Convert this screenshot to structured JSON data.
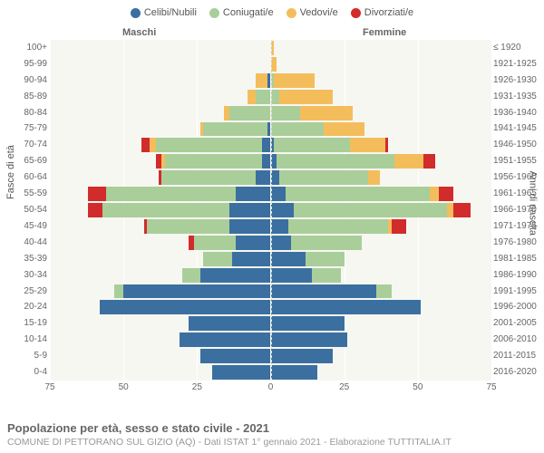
{
  "legend": {
    "items": [
      {
        "label": "Celibi/Nubili",
        "color": "#3b6fa0"
      },
      {
        "label": "Coniugati/e",
        "color": "#a9ce9a"
      },
      {
        "label": "Vedovi/e",
        "color": "#f4bd5c"
      },
      {
        "label": "Divorziati/e",
        "color": "#d22b2b"
      }
    ]
  },
  "gender_labels": {
    "male": "Maschi",
    "female": "Femmine"
  },
  "y_axis_left_label": "Fasce di età",
  "y_axis_right_label": "Anni di nascita",
  "x_axis": {
    "min": -75,
    "max": 75,
    "ticks": [
      75,
      50,
      25,
      0,
      25,
      50,
      75
    ],
    "tick_positions": [
      -75,
      -50,
      -25,
      0,
      25,
      50,
      75
    ]
  },
  "colors": {
    "plot_bg": "#f7f7f2",
    "grid": "#ffffff",
    "text": "#666666",
    "sub_text": "#999999"
  },
  "title": "Popolazione per età, sesso e stato civile - 2021",
  "subtitle": "COMUNE DI PETTORANO SUL GIZIO (AQ) - Dati ISTAT 1° gennaio 2021 - Elaborazione TUTTITALIA.IT",
  "rows": [
    {
      "age": "100+",
      "birth": "≤ 1920",
      "m": [
        0,
        0,
        0,
        0
      ],
      "f": [
        0,
        0,
        1,
        0
      ]
    },
    {
      "age": "95-99",
      "birth": "1921-1925",
      "m": [
        0,
        0,
        0,
        0
      ],
      "f": [
        0,
        0,
        2,
        0
      ]
    },
    {
      "age": "90-94",
      "birth": "1926-1930",
      "m": [
        1,
        0,
        4,
        0
      ],
      "f": [
        0,
        1,
        14,
        0
      ]
    },
    {
      "age": "85-89",
      "birth": "1931-1935",
      "m": [
        0,
        5,
        3,
        0
      ],
      "f": [
        0,
        3,
        18,
        0
      ]
    },
    {
      "age": "80-84",
      "birth": "1936-1940",
      "m": [
        0,
        14,
        2,
        0
      ],
      "f": [
        0,
        10,
        18,
        0
      ]
    },
    {
      "age": "75-79",
      "birth": "1941-1945",
      "m": [
        1,
        22,
        1,
        0
      ],
      "f": [
        0,
        18,
        14,
        0
      ]
    },
    {
      "age": "70-74",
      "birth": "1946-1950",
      "m": [
        3,
        36,
        2,
        3
      ],
      "f": [
        1,
        26,
        12,
        1
      ]
    },
    {
      "age": "65-69",
      "birth": "1951-1955",
      "m": [
        3,
        33,
        1,
        2
      ],
      "f": [
        2,
        40,
        10,
        4
      ]
    },
    {
      "age": "60-64",
      "birth": "1956-1960",
      "m": [
        5,
        32,
        0,
        1
      ],
      "f": [
        3,
        30,
        4,
        0
      ]
    },
    {
      "age": "55-59",
      "birth": "1961-1965",
      "m": [
        12,
        44,
        0,
        6
      ],
      "f": [
        5,
        49,
        3,
        5
      ]
    },
    {
      "age": "50-54",
      "birth": "1966-1970",
      "m": [
        14,
        43,
        0,
        5
      ],
      "f": [
        8,
        52,
        2,
        6
      ]
    },
    {
      "age": "45-49",
      "birth": "1971-1975",
      "m": [
        14,
        28,
        0,
        1
      ],
      "f": [
        6,
        34,
        1,
        5
      ]
    },
    {
      "age": "40-44",
      "birth": "1976-1980",
      "m": [
        12,
        14,
        0,
        2
      ],
      "f": [
        7,
        24,
        0,
        0
      ]
    },
    {
      "age": "35-39",
      "birth": "1981-1985",
      "m": [
        13,
        10,
        0,
        0
      ],
      "f": [
        12,
        13,
        0,
        0
      ]
    },
    {
      "age": "30-34",
      "birth": "1986-1990",
      "m": [
        24,
        6,
        0,
        0
      ],
      "f": [
        14,
        10,
        0,
        0
      ]
    },
    {
      "age": "25-29",
      "birth": "1991-1995",
      "m": [
        50,
        3,
        0,
        0
      ],
      "f": [
        36,
        5,
        0,
        0
      ]
    },
    {
      "age": "20-24",
      "birth": "1996-2000",
      "m": [
        58,
        0,
        0,
        0
      ],
      "f": [
        51,
        0,
        0,
        0
      ]
    },
    {
      "age": "15-19",
      "birth": "2001-2005",
      "m": [
        28,
        0,
        0,
        0
      ],
      "f": [
        25,
        0,
        0,
        0
      ]
    },
    {
      "age": "10-14",
      "birth": "2006-2010",
      "m": [
        31,
        0,
        0,
        0
      ],
      "f": [
        26,
        0,
        0,
        0
      ]
    },
    {
      "age": "5-9",
      "birth": "2011-2015",
      "m": [
        24,
        0,
        0,
        0
      ],
      "f": [
        21,
        0,
        0,
        0
      ]
    },
    {
      "age": "0-4",
      "birth": "2016-2020",
      "m": [
        20,
        0,
        0,
        0
      ],
      "f": [
        16,
        0,
        0,
        0
      ]
    }
  ]
}
